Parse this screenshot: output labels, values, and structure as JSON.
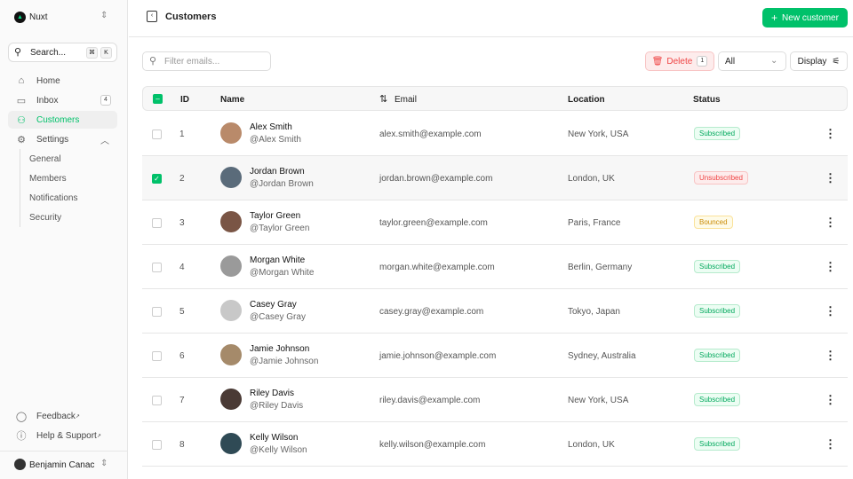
{
  "sidebar": {
    "team": "Nuxt",
    "search": "Search...",
    "kbd": [
      "⌘",
      "K"
    ],
    "items": [
      {
        "label": "Home",
        "icon": "home-icon"
      },
      {
        "label": "Inbox",
        "icon": "inbox-icon",
        "badge": "4"
      },
      {
        "label": "Customers",
        "icon": "users-icon"
      },
      {
        "label": "Settings",
        "icon": "gear-icon"
      }
    ],
    "settings_sub": [
      "General",
      "Members",
      "Notifications",
      "Security"
    ],
    "footer": [
      {
        "label": "Feedback",
        "icon": "chat-icon"
      },
      {
        "label": "Help & Support",
        "icon": "info-icon"
      }
    ],
    "user": "Benjamin Canac"
  },
  "header": {
    "title": "Customers",
    "new_button": "New customer"
  },
  "toolbar": {
    "filter_placeholder": "Filter emails...",
    "delete_label": "Delete",
    "delete_count": "1",
    "status_filter": "All",
    "display_label": "Display"
  },
  "table": {
    "columns": [
      "ID",
      "Name",
      "Email",
      "Location",
      "Status"
    ],
    "rows": [
      {
        "id": "1",
        "name": "Alex Smith",
        "handle": "@Alex Smith",
        "email": "alex.smith@example.com",
        "location": "New York, USA",
        "status": "Subscribed",
        "selected": false
      },
      {
        "id": "2",
        "name": "Jordan Brown",
        "handle": "@Jordan Brown",
        "email": "jordan.brown@example.com",
        "location": "London, UK",
        "status": "Unsubscribed",
        "selected": true
      },
      {
        "id": "3",
        "name": "Taylor Green",
        "handle": "@Taylor Green",
        "email": "taylor.green@example.com",
        "location": "Paris, France",
        "status": "Bounced",
        "selected": false
      },
      {
        "id": "4",
        "name": "Morgan White",
        "handle": "@Morgan White",
        "email": "morgan.white@example.com",
        "location": "Berlin, Germany",
        "status": "Subscribed",
        "selected": false
      },
      {
        "id": "5",
        "name": "Casey Gray",
        "handle": "@Casey Gray",
        "email": "casey.gray@example.com",
        "location": "Tokyo, Japan",
        "status": "Subscribed",
        "selected": false
      },
      {
        "id": "6",
        "name": "Jamie Johnson",
        "handle": "@Jamie Johnson",
        "email": "jamie.johnson@example.com",
        "location": "Sydney, Australia",
        "status": "Subscribed",
        "selected": false
      },
      {
        "id": "7",
        "name": "Riley Davis",
        "handle": "@Riley Davis",
        "email": "riley.davis@example.com",
        "location": "New York, USA",
        "status": "Subscribed",
        "selected": false
      },
      {
        "id": "8",
        "name": "Kelly Wilson",
        "handle": "@Kelly Wilson",
        "email": "kelly.wilson@example.com",
        "location": "London, UK",
        "status": "Subscribed",
        "selected": false
      }
    ]
  },
  "colors": {
    "accent": "#00c16a",
    "danger": "#ef4444",
    "warning": "#eab308"
  }
}
